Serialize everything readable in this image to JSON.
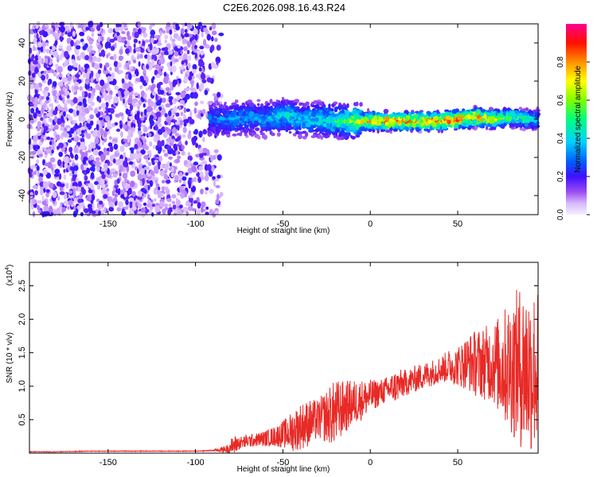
{
  "figure": {
    "title": "C2E6.2026.098.16.43.R24"
  },
  "colors": {
    "background": "#ffffff",
    "axis": "#000000",
    "snr_line": "#e82a26",
    "colormap": [
      "#ffffff",
      "#d8b8ff",
      "#8a2be2",
      "#3a10ff",
      "#0070ff",
      "#00d8ff",
      "#00ff70",
      "#aaff00",
      "#ffff00",
      "#ff8000",
      "#ff0000",
      "#ff00aa"
    ]
  },
  "chart_data": [
    {
      "type": "heatmap",
      "title": "",
      "xlabel": "Height of straight line (km)",
      "ylabel": "Frequency (Hz)",
      "xlim": [
        -195,
        96
      ],
      "ylim": [
        -50,
        50
      ],
      "x_ticks": [
        -150,
        -100,
        -50,
        0,
        50
      ],
      "x_tick_labels": [
        "-150",
        "-100",
        "-50",
        "0",
        "50"
      ],
      "y_ticks": [
        -40,
        -20,
        0,
        20,
        40
      ],
      "y_tick_labels": [
        "-40",
        "-20",
        "0",
        "20",
        "40"
      ],
      "colorbar": {
        "label": "Normalized spectral amplitude",
        "range": [
          0,
          1
        ],
        "ticks": [
          0.0,
          0.2,
          0.4,
          0.6,
          0.8
        ],
        "tick_labels": [
          "0.0",
          "0.2",
          "0.4",
          "0.6",
          "0.8"
        ]
      },
      "description_regions": {
        "noise_region_x": [
          -195,
          -90
        ],
        "noise_freq_range": [
          -50,
          50
        ],
        "signal_center_freq": 0,
        "signal_band_halfwidth": 5
      },
      "signal_track": {
        "x": [
          -90,
          -80,
          -70,
          -60,
          -50,
          -40,
          -30,
          -20,
          -10,
          0,
          10,
          20,
          30,
          40,
          50,
          60,
          70,
          80,
          90,
          96
        ],
        "freq": [
          0,
          0,
          1,
          0,
          2,
          0,
          0,
          -1,
          -1,
          -1,
          -1,
          -1,
          -1,
          -1,
          0,
          1,
          0,
          1,
          0,
          0
        ],
        "amplitude": [
          0.25,
          0.3,
          0.3,
          0.3,
          0.4,
          0.35,
          0.4,
          0.45,
          0.6,
          0.75,
          0.85,
          0.8,
          0.8,
          0.85,
          0.9,
          0.8,
          0.7,
          0.55,
          0.45,
          0.35
        ]
      }
    },
    {
      "type": "line",
      "title": "",
      "xlabel": "Height of straight line (km)",
      "ylabel": "SNR (10 * v/v)",
      "y_multiplier_label": "(x10",
      "y_multiplier_exp": "4",
      "y_multiplier_close": ")",
      "xlim": [
        -195,
        96
      ],
      "ylim": [
        0,
        2.85
      ],
      "x_ticks": [
        -150,
        -100,
        -50,
        0,
        50
      ],
      "x_tick_labels": [
        "-150",
        "-100",
        "-50",
        "0",
        "50"
      ],
      "y_ticks": [
        0.5,
        1.0,
        1.5,
        2.0,
        2.5
      ],
      "y_tick_labels": [
        "0.5",
        "1.0",
        "1.5",
        "2.0",
        "2.5"
      ],
      "series": [
        {
          "x": [
            -195,
            -180,
            -160,
            -140,
            -120,
            -100,
            -90,
            -82,
            -78,
            -75,
            -70,
            -65,
            -60,
            -55,
            -50,
            -45,
            -40,
            -35,
            -30,
            -25,
            -20,
            -15,
            -10,
            -5,
            0,
            5,
            10,
            15,
            20,
            25,
            30,
            35,
            40,
            45,
            50,
            55,
            60,
            65,
            70,
            75,
            80,
            85,
            90,
            96
          ],
          "mean": [
            0.02,
            0.02,
            0.03,
            0.03,
            0.03,
            0.03,
            0.04,
            0.06,
            0.12,
            0.15,
            0.18,
            0.2,
            0.22,
            0.25,
            0.28,
            0.32,
            0.4,
            0.45,
            0.5,
            0.55,
            0.6,
            0.68,
            0.75,
            0.8,
            0.85,
            0.9,
            0.95,
            1.0,
            1.05,
            1.1,
            1.15,
            1.2,
            1.25,
            1.3,
            1.3,
            1.35,
            1.35,
            1.35,
            1.35,
            1.3,
            1.3,
            1.3,
            1.25,
            1.25
          ],
          "spread": [
            0.005,
            0.005,
            0.005,
            0.005,
            0.005,
            0.005,
            0.01,
            0.06,
            0.15,
            0.1,
            0.1,
            0.1,
            0.12,
            0.15,
            0.2,
            0.3,
            0.35,
            0.35,
            0.3,
            0.4,
            0.5,
            0.4,
            0.35,
            0.3,
            0.25,
            0.2,
            0.2,
            0.25,
            0.2,
            0.2,
            0.2,
            0.2,
            0.2,
            0.25,
            0.3,
            0.4,
            0.5,
            0.55,
            0.6,
            0.8,
            1.0,
            1.2,
            1.3,
            1.2
          ]
        }
      ]
    }
  ]
}
